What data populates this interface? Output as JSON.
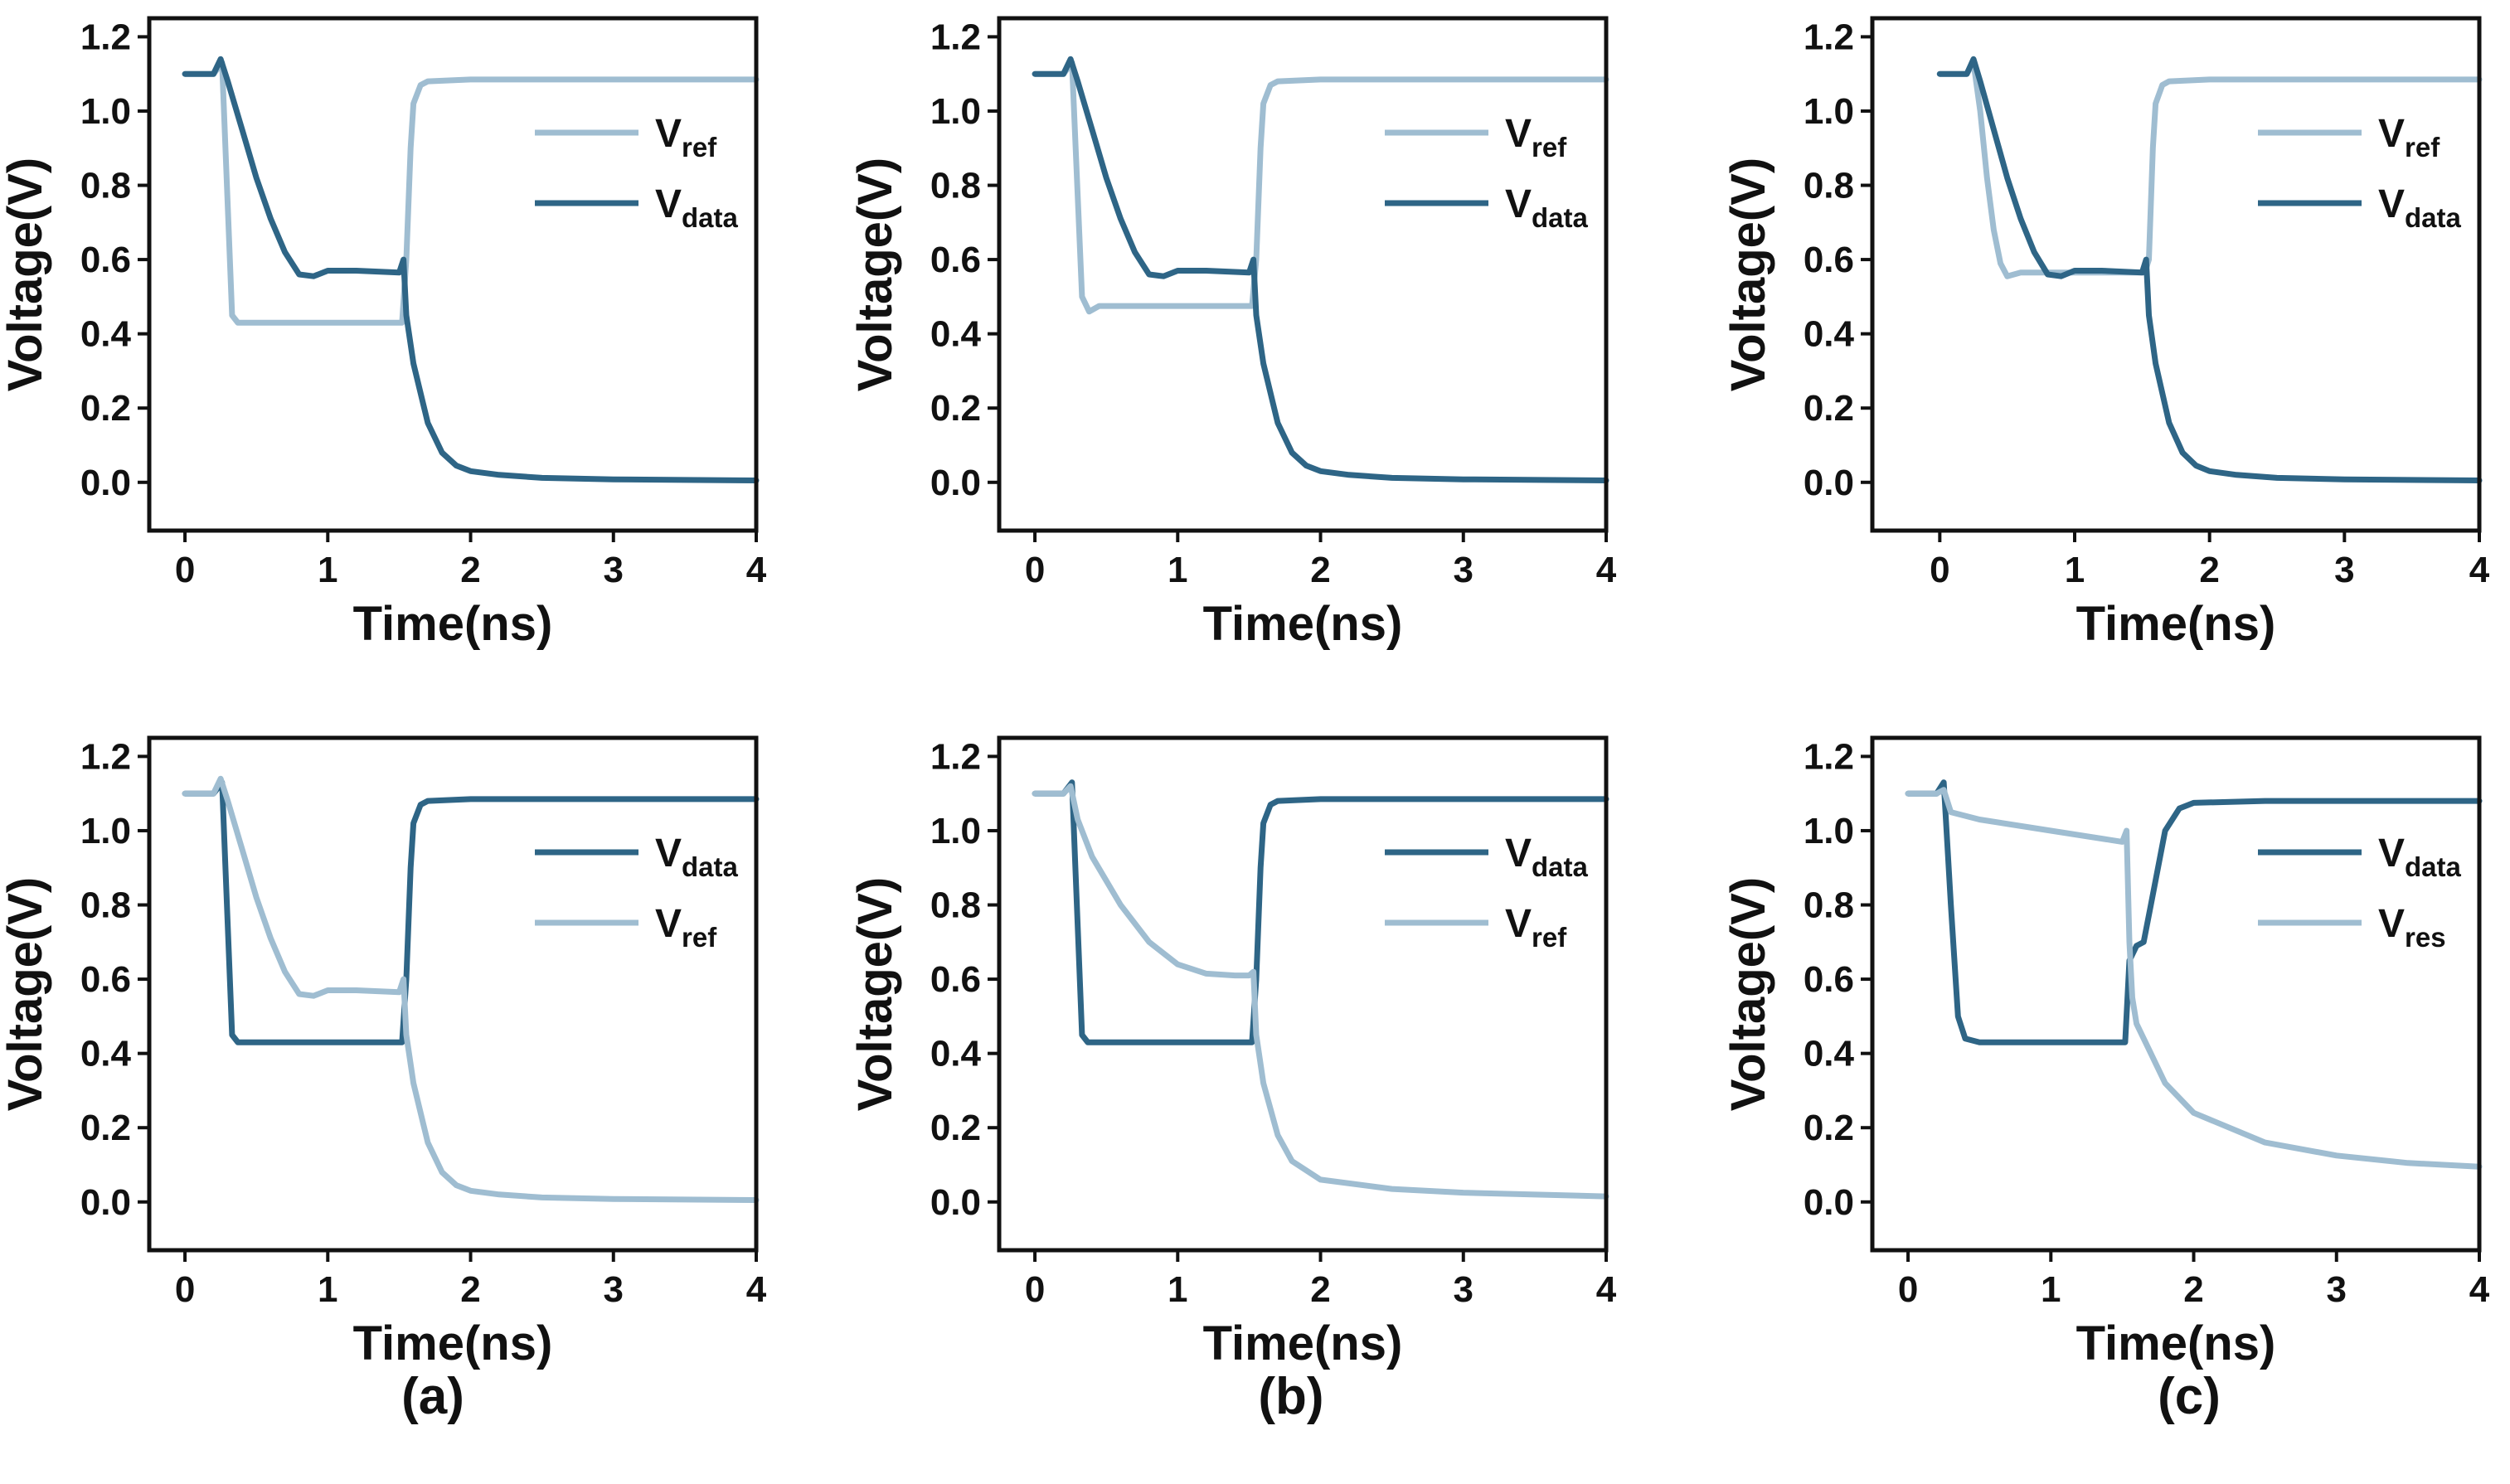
{
  "colors": {
    "dark": "#2e6586",
    "light": "#9fbdd1",
    "axis": "#111111"
  },
  "panel_labels": [
    "(a)",
    "(b)",
    "(c)"
  ],
  "chart_data": [
    {
      "type": "line",
      "id": "top-a",
      "xlabel": "Time(ns)",
      "ylabel": "Voltage(V)",
      "xlim": [
        -0.25,
        4
      ],
      "ylim": [
        -0.13,
        1.25
      ],
      "xticks": [
        "0",
        "1",
        "2",
        "3",
        "4"
      ],
      "yticks": [
        "0.0",
        "0.2",
        "0.4",
        "0.6",
        "0.8",
        "1.0",
        "1.2"
      ],
      "series": [
        {
          "name": "V",
          "sub": "ref",
          "color": "light",
          "x": [
            0,
            0.2,
            0.26,
            0.33,
            0.37,
            0.5,
            1.0,
            1.4,
            1.52,
            1.55,
            1.58,
            1.6,
            1.65,
            1.7,
            2.0,
            3.0,
            4.0
          ],
          "y": [
            1.1,
            1.1,
            1.13,
            0.45,
            0.43,
            0.43,
            0.43,
            0.43,
            0.43,
            0.6,
            0.9,
            1.02,
            1.07,
            1.08,
            1.085,
            1.085,
            1.085
          ]
        },
        {
          "name": "V",
          "sub": "data",
          "color": "dark",
          "x": [
            0,
            0.2,
            0.25,
            0.3,
            0.4,
            0.5,
            0.6,
            0.7,
            0.8,
            0.9,
            1.0,
            1.2,
            1.5,
            1.53,
            1.55,
            1.6,
            1.7,
            1.8,
            1.9,
            2.0,
            2.2,
            2.5,
            3.0,
            4.0
          ],
          "y": [
            1.1,
            1.1,
            1.14,
            1.08,
            0.95,
            0.82,
            0.71,
            0.62,
            0.56,
            0.555,
            0.57,
            0.57,
            0.565,
            0.6,
            0.45,
            0.32,
            0.16,
            0.08,
            0.045,
            0.03,
            0.02,
            0.012,
            0.008,
            0.005
          ]
        }
      ]
    },
    {
      "type": "line",
      "id": "top-b",
      "xlabel": "Time(ns)",
      "ylabel": "Voltage(V)",
      "xlim": [
        -0.25,
        4
      ],
      "ylim": [
        -0.13,
        1.25
      ],
      "xticks": [
        "0",
        "1",
        "2",
        "3",
        "4"
      ],
      "yticks": [
        "0.0",
        "0.2",
        "0.4",
        "0.6",
        "0.8",
        "1.0",
        "1.2"
      ],
      "series": [
        {
          "name": "V",
          "sub": "ref",
          "color": "light",
          "x": [
            0,
            0.2,
            0.26,
            0.33,
            0.38,
            0.45,
            1.0,
            1.4,
            1.52,
            1.55,
            1.58,
            1.6,
            1.65,
            1.7,
            2.0,
            3.0,
            4.0
          ],
          "y": [
            1.1,
            1.1,
            1.13,
            0.5,
            0.46,
            0.475,
            0.475,
            0.475,
            0.475,
            0.6,
            0.9,
            1.02,
            1.07,
            1.08,
            1.085,
            1.085,
            1.085
          ]
        },
        {
          "name": "V",
          "sub": "data",
          "color": "dark",
          "x": [
            0,
            0.2,
            0.25,
            0.3,
            0.4,
            0.5,
            0.6,
            0.7,
            0.8,
            0.9,
            1.0,
            1.2,
            1.5,
            1.53,
            1.55,
            1.6,
            1.7,
            1.8,
            1.9,
            2.0,
            2.2,
            2.5,
            3.0,
            4.0
          ],
          "y": [
            1.1,
            1.1,
            1.14,
            1.08,
            0.95,
            0.82,
            0.71,
            0.62,
            0.56,
            0.555,
            0.57,
            0.57,
            0.565,
            0.6,
            0.45,
            0.32,
            0.16,
            0.08,
            0.045,
            0.03,
            0.02,
            0.012,
            0.008,
            0.005
          ]
        }
      ]
    },
    {
      "type": "line",
      "id": "top-c",
      "xlabel": "Time(ns)",
      "ylabel": "Voltage(V)",
      "xlim": [
        -0.5,
        4
      ],
      "ylim": [
        -0.13,
        1.25
      ],
      "xticks": [
        "0",
        "1",
        "2",
        "3",
        "4"
      ],
      "yticks": [
        "0.0",
        "0.2",
        "0.4",
        "0.6",
        "0.8",
        "1.0",
        "1.2"
      ],
      "series": [
        {
          "name": "V",
          "sub": "ref",
          "color": "light",
          "x": [
            0,
            0.2,
            0.25,
            0.3,
            0.35,
            0.4,
            0.45,
            0.5,
            0.6,
            0.8,
            1.0,
            1.4,
            1.52,
            1.55,
            1.58,
            1.6,
            1.65,
            1.7,
            2.0,
            3.0,
            4.0
          ],
          "y": [
            1.1,
            1.1,
            1.13,
            1.0,
            0.82,
            0.68,
            0.59,
            0.555,
            0.565,
            0.565,
            0.565,
            0.565,
            0.565,
            0.6,
            0.9,
            1.02,
            1.07,
            1.08,
            1.085,
            1.085,
            1.085
          ]
        },
        {
          "name": "V",
          "sub": "data",
          "color": "dark",
          "x": [
            0,
            0.2,
            0.25,
            0.3,
            0.4,
            0.5,
            0.6,
            0.7,
            0.8,
            0.9,
            1.0,
            1.2,
            1.5,
            1.53,
            1.55,
            1.6,
            1.7,
            1.8,
            1.9,
            2.0,
            2.2,
            2.5,
            3.0,
            4.0
          ],
          "y": [
            1.1,
            1.1,
            1.14,
            1.08,
            0.95,
            0.82,
            0.71,
            0.62,
            0.56,
            0.555,
            0.57,
            0.57,
            0.565,
            0.6,
            0.45,
            0.32,
            0.16,
            0.08,
            0.045,
            0.03,
            0.02,
            0.012,
            0.008,
            0.005
          ]
        }
      ]
    },
    {
      "type": "line",
      "id": "bottom-a",
      "xlabel": "Time(ns)",
      "ylabel": "Voltage(V)",
      "xlim": [
        -0.25,
        4
      ],
      "ylim": [
        -0.13,
        1.25
      ],
      "xticks": [
        "0",
        "1",
        "2",
        "3",
        "4"
      ],
      "yticks": [
        "0.0",
        "0.2",
        "0.4",
        "0.6",
        "0.8",
        "1.0",
        "1.2"
      ],
      "series": [
        {
          "name": "V",
          "sub": "data",
          "color": "dark",
          "x": [
            0,
            0.2,
            0.26,
            0.33,
            0.37,
            0.5,
            1.0,
            1.4,
            1.52,
            1.55,
            1.58,
            1.6,
            1.65,
            1.7,
            2.0,
            3.0,
            4.0
          ],
          "y": [
            1.1,
            1.1,
            1.13,
            0.45,
            0.43,
            0.43,
            0.43,
            0.43,
            0.43,
            0.6,
            0.9,
            1.02,
            1.07,
            1.08,
            1.085,
            1.085,
            1.085
          ]
        },
        {
          "name": "V",
          "sub": "ref",
          "color": "light",
          "x": [
            0,
            0.2,
            0.25,
            0.3,
            0.4,
            0.5,
            0.6,
            0.7,
            0.8,
            0.9,
            1.0,
            1.2,
            1.5,
            1.53,
            1.55,
            1.6,
            1.7,
            1.8,
            1.9,
            2.0,
            2.2,
            2.5,
            3.0,
            4.0
          ],
          "y": [
            1.1,
            1.1,
            1.14,
            1.08,
            0.95,
            0.82,
            0.71,
            0.62,
            0.56,
            0.555,
            0.57,
            0.57,
            0.565,
            0.6,
            0.45,
            0.32,
            0.16,
            0.08,
            0.045,
            0.03,
            0.02,
            0.012,
            0.008,
            0.005
          ]
        }
      ]
    },
    {
      "type": "line",
      "id": "bottom-b",
      "xlabel": "Time(ns)",
      "ylabel": "Voltage(V)",
      "xlim": [
        -0.25,
        4
      ],
      "ylim": [
        -0.13,
        1.25
      ],
      "xticks": [
        "0",
        "1",
        "2",
        "3",
        "4"
      ],
      "yticks": [
        "0.0",
        "0.2",
        "0.4",
        "0.6",
        "0.8",
        "1.0",
        "1.2"
      ],
      "series": [
        {
          "name": "V",
          "sub": "data",
          "color": "dark",
          "x": [
            0,
            0.2,
            0.26,
            0.33,
            0.37,
            0.5,
            1.0,
            1.4,
            1.52,
            1.55,
            1.58,
            1.6,
            1.65,
            1.7,
            2.0,
            3.0,
            4.0
          ],
          "y": [
            1.1,
            1.1,
            1.13,
            0.45,
            0.43,
            0.43,
            0.43,
            0.43,
            0.43,
            0.6,
            0.9,
            1.02,
            1.07,
            1.08,
            1.085,
            1.085,
            1.085
          ]
        },
        {
          "name": "V",
          "sub": "ref",
          "color": "light",
          "x": [
            0,
            0.2,
            0.25,
            0.3,
            0.4,
            0.6,
            0.8,
            1.0,
            1.2,
            1.4,
            1.5,
            1.53,
            1.55,
            1.6,
            1.7,
            1.8,
            2.0,
            2.5,
            3.0,
            4.0
          ],
          "y": [
            1.1,
            1.1,
            1.12,
            1.03,
            0.93,
            0.8,
            0.7,
            0.64,
            0.615,
            0.61,
            0.61,
            0.62,
            0.45,
            0.32,
            0.18,
            0.11,
            0.06,
            0.035,
            0.025,
            0.015
          ]
        }
      ]
    },
    {
      "type": "line",
      "id": "bottom-c",
      "xlabel": "Time(ns)",
      "ylabel": "Voltage(V)",
      "xlim": [
        -0.25,
        4
      ],
      "ylim": [
        -0.13,
        1.25
      ],
      "xticks": [
        "0",
        "1",
        "2",
        "3",
        "4"
      ],
      "yticks": [
        "0.0",
        "0.2",
        "0.4",
        "0.6",
        "0.8",
        "1.0",
        "1.2"
      ],
      "series": [
        {
          "name": "V",
          "sub": "data",
          "color": "dark",
          "x": [
            0,
            0.2,
            0.25,
            0.3,
            0.35,
            0.4,
            0.5,
            1.0,
            1.4,
            1.5,
            1.52,
            1.55,
            1.6,
            1.65,
            1.7,
            1.8,
            1.9,
            2.0,
            2.5,
            3.0,
            4.0
          ],
          "y": [
            1.1,
            1.1,
            1.13,
            0.8,
            0.5,
            0.44,
            0.43,
            0.43,
            0.43,
            0.43,
            0.43,
            0.65,
            0.69,
            0.7,
            0.8,
            1.0,
            1.06,
            1.075,
            1.08,
            1.08,
            1.08
          ]
        },
        {
          "name": "V",
          "sub": "res",
          "color": "light",
          "x": [
            0,
            0.2,
            0.25,
            0.3,
            0.5,
            1.0,
            1.5,
            1.53,
            1.55,
            1.57,
            1.6,
            1.7,
            1.8,
            2.0,
            2.5,
            3.0,
            3.5,
            4.0
          ],
          "y": [
            1.1,
            1.1,
            1.11,
            1.05,
            1.03,
            1.0,
            0.97,
            1.0,
            0.7,
            0.55,
            0.48,
            0.4,
            0.32,
            0.24,
            0.16,
            0.125,
            0.105,
            0.095
          ]
        }
      ]
    }
  ]
}
